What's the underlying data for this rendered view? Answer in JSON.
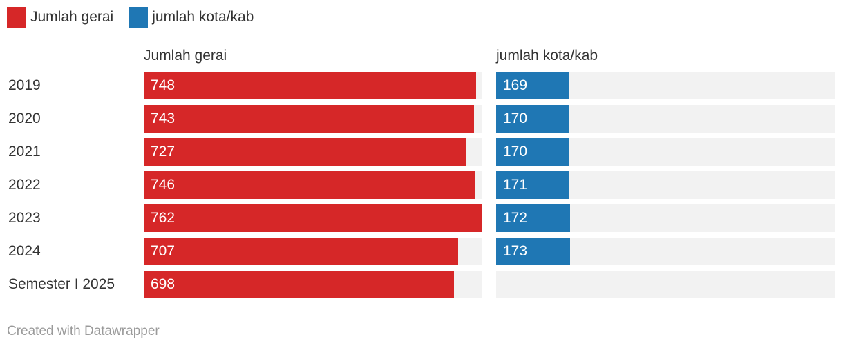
{
  "chart_data": {
    "type": "bar",
    "orientation": "horizontal",
    "layout": "split-bars",
    "categories": [
      "2019",
      "2020",
      "2021",
      "2022",
      "2023",
      "2024",
      "Semester I 2025"
    ],
    "series": [
      {
        "name": "Jumlah gerai",
        "color": "#d62728",
        "values": [
          748,
          743,
          727,
          746,
          762,
          707,
          698
        ]
      },
      {
        "name": "jumlah kota/kab",
        "color": "#1f77b4",
        "values": [
          169,
          170,
          170,
          171,
          172,
          173,
          null
        ]
      }
    ],
    "track_color": "#f2f2f2",
    "legend_position": "top-left",
    "grid": false
  },
  "footer": {
    "credit": "Created with Datawrapper"
  }
}
